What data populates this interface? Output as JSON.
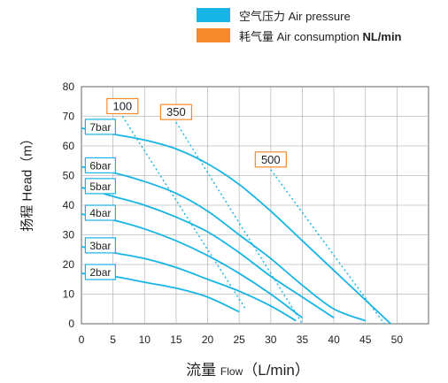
{
  "legend": {
    "pressure_label": "空气压力 Air pressure",
    "pressure_color": "#17b4e6",
    "consumption_label_main": "耗气量 Air consumption ",
    "consumption_label_unit": "NL/min",
    "consumption_color": "#f68a2b"
  },
  "axes": {
    "ylabel": "扬程 Head（m）",
    "xlabel_main": "流量 ",
    "xlabel_small": "Flow",
    "xlabel_unit": "（L/min）"
  },
  "chart_data": {
    "type": "line",
    "xlim": [
      0,
      55
    ],
    "ylim": [
      0,
      80
    ],
    "xticks": [
      0,
      5,
      10,
      15,
      20,
      25,
      30,
      35,
      40,
      45,
      50
    ],
    "yticks": [
      0,
      10,
      20,
      30,
      40,
      50,
      60,
      70,
      80
    ],
    "xlabel": "流量 Flow（L/min）",
    "ylabel": "扬程 Head（m）",
    "grid": true,
    "series": [
      {
        "name": "7bar",
        "x": [
          0,
          5,
          10,
          15,
          20,
          25,
          30,
          35,
          40,
          45,
          49
        ],
        "y": [
          66,
          64,
          62,
          59,
          54,
          47,
          38,
          28,
          18,
          8,
          0
        ]
      },
      {
        "name": "6bar",
        "x": [
          0,
          5,
          10,
          15,
          20,
          25,
          30,
          35,
          40,
          45
        ],
        "y": [
          53,
          51,
          48,
          44,
          38,
          30,
          22,
          13,
          5,
          1
        ]
      },
      {
        "name": "5bar",
        "x": [
          0,
          5,
          10,
          15,
          20,
          25,
          30,
          35,
          40
        ],
        "y": [
          46,
          43,
          40,
          36,
          31,
          24,
          16,
          9,
          2
        ]
      },
      {
        "name": "4bar",
        "x": [
          0,
          5,
          10,
          15,
          20,
          25,
          30,
          35
        ],
        "y": [
          37,
          35,
          32,
          28,
          23,
          17,
          10,
          2
        ]
      },
      {
        "name": "3bar",
        "x": [
          0,
          5,
          10,
          15,
          20,
          25,
          30,
          34
        ],
        "y": [
          26,
          24,
          22,
          19,
          15,
          11,
          6,
          1
        ]
      },
      {
        "name": "2bar",
        "x": [
          0,
          5,
          10,
          15,
          20,
          25
        ],
        "y": [
          17,
          16,
          14,
          12,
          9,
          4
        ]
      }
    ],
    "consumption_lines": [
      {
        "name": "100",
        "x": [
          6.5,
          26
        ],
        "y": [
          70,
          5
        ]
      },
      {
        "name": "350",
        "x": [
          15,
          35
        ],
        "y": [
          68,
          0
        ]
      },
      {
        "name": "500",
        "x": [
          30,
          48
        ],
        "y": [
          52,
          0
        ]
      }
    ]
  }
}
